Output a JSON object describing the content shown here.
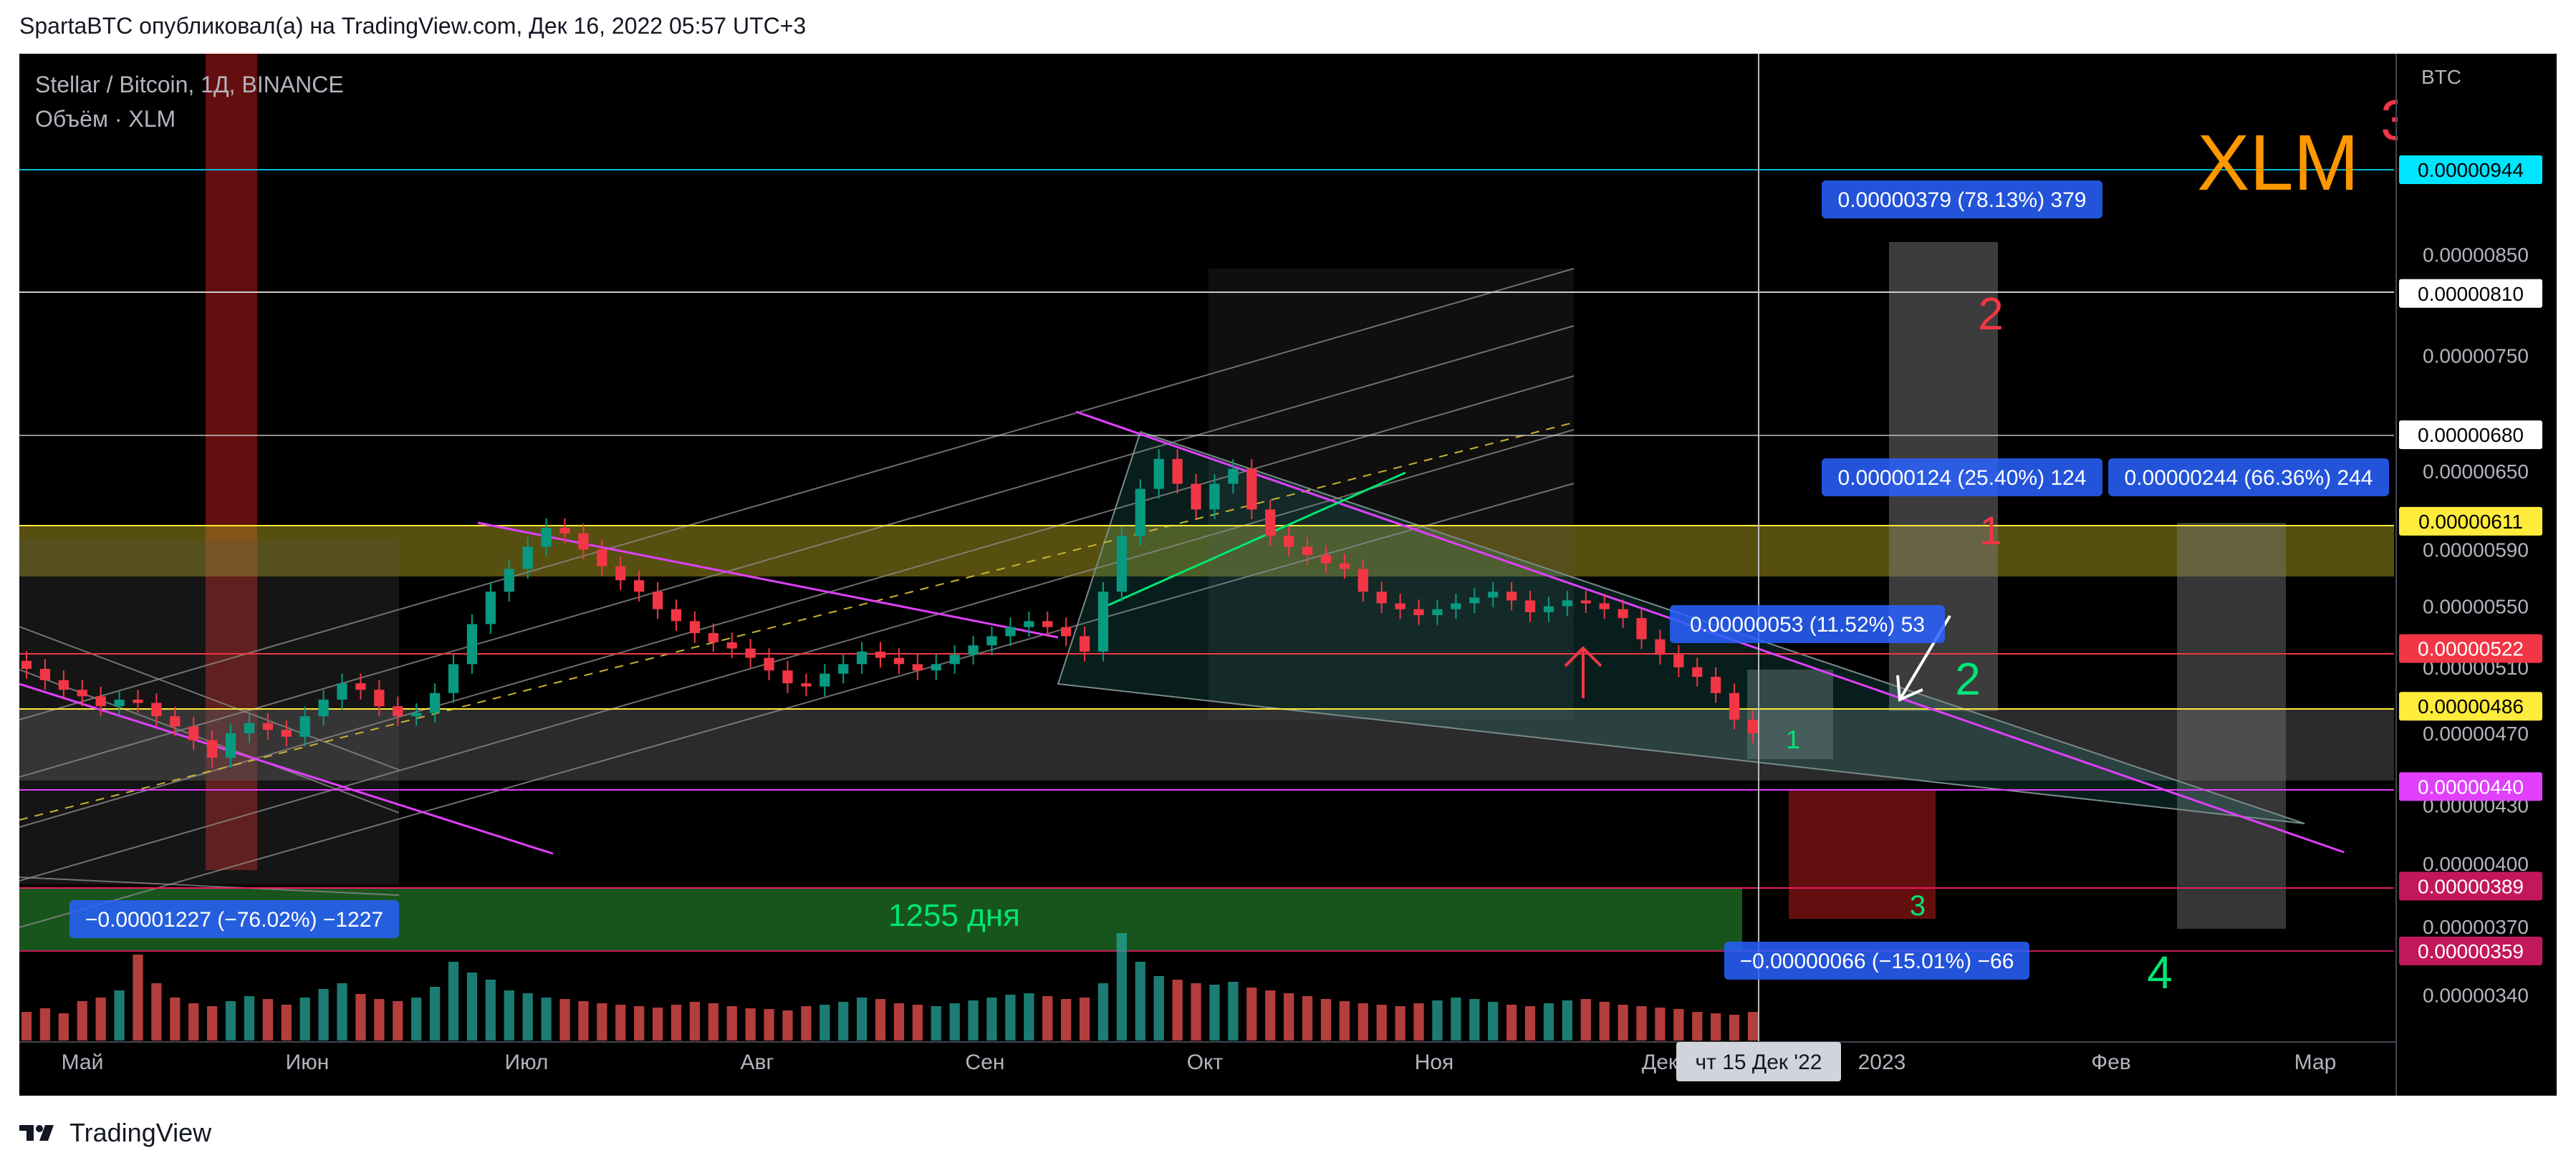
{
  "header": {
    "text": "SpartaBTC опубликовал(а) на TradingView.com, Дек 16, 2022 05:57 UTC+3"
  },
  "footer": {
    "brand": "TradingView"
  },
  "chart_data": {
    "type": "candlestick",
    "symbol_line": "Stellar / Bitcoin, 1Д, BINANCE",
    "volume_line": "Объём · XLM",
    "corner_title": "XLM",
    "corner_number": "3",
    "currency": "BTC",
    "y_axis_labels": [
      "0.00000850",
      "0.00000750",
      "0.00000650",
      "0.00000590",
      "0.00000550",
      "0.00000510",
      "0.00000470",
      "0.00000430",
      "0.00000400",
      "0.00000370",
      "0.00000340"
    ],
    "x_axis_labels": [
      "Май",
      "Июн",
      "Июл",
      "Авг",
      "Сен",
      "Окт",
      "Ноя",
      "Дек",
      "2023",
      "Фев",
      "Мар"
    ],
    "cursor_label": "чт 15 Дек '22",
    "levels": [
      {
        "price": "0.00000944",
        "color": "#00e5ff",
        "text_color": "#000000"
      },
      {
        "price": "0.00000810",
        "color": "#ffffff",
        "text_color": "#000000"
      },
      {
        "price": "0.00000680",
        "color": "#ffffff",
        "text_color": "#000000"
      },
      {
        "price": "0.00000611",
        "color": "#ffeb3b",
        "text_color": "#000000"
      },
      {
        "price": "0.00000522",
        "color": "#f23645",
        "text_color": "#ffffff"
      },
      {
        "price": "0.00000486",
        "color": "#ffeb3b",
        "text_color": "#000000"
      },
      {
        "price": "0.00000440",
        "color": "#e040fb",
        "text_color": "#ffffff"
      },
      {
        "price": "0.00000389",
        "color": "#c2185b",
        "text_color": "#ffffff"
      },
      {
        "price": "0.00000359",
        "color": "#c2185b",
        "text_color": "#ffffff"
      }
    ],
    "measure_labels": [
      "0.00000379 (78.13%) 379",
      "0.00000124 (25.40%) 124",
      "0.00000244 (66.36%) 244",
      "0.00000053 (11.52%) 53",
      "−0.00000066 (−15.01%) −66",
      "−0.00001227 (−76.02%) −1227"
    ],
    "annotations": [
      "2",
      "1",
      "2",
      "1",
      "3",
      "4"
    ],
    "days_label": "1255 дня",
    "colors": {
      "up": "#26a69a",
      "down": "#ef5350",
      "bull_candle": "#089981",
      "bear_candle": "#f23645",
      "measure_box": "#2962ff",
      "xlm_title": "#ff9800",
      "red_number": "#f23645",
      "green_number": "#00e676"
    },
    "series_close": [
      5.09e-06,
      5.02e-06,
      4.96e-06,
      4.92e-06,
      4.86e-06,
      4.9e-06,
      4.88e-06,
      4.8e-06,
      4.74e-06,
      4.66e-06,
      4.56e-06,
      4.7e-06,
      4.76e-06,
      4.72e-06,
      4.68e-06,
      4.8e-06,
      4.9e-06,
      5e-06,
      4.96e-06,
      4.86e-06,
      4.8e-06,
      4.82e-06,
      4.94e-06,
      5.12e-06,
      5.38e-06,
      5.6e-06,
      5.76e-06,
      5.92e-06,
      6.06e-06,
      6.02e-06,
      5.9e-06,
      5.78e-06,
      5.68e-06,
      5.6e-06,
      5.48e-06,
      5.4e-06,
      5.32e-06,
      5.26e-06,
      5.22e-06,
      5.16e-06,
      5.08e-06,
      5e-06,
      4.98e-06,
      5.06e-06,
      5.12e-06,
      5.2e-06,
      5.16e-06,
      5.12e-06,
      5.08e-06,
      5.12e-06,
      5.18e-06,
      5.24e-06,
      5.3e-06,
      5.36e-06,
      5.4e-06,
      5.36e-06,
      5.3e-06,
      5.2e-06,
      5.6e-06,
      6e-06,
      6.36e-06,
      6.6e-06,
      6.4e-06,
      6.2e-06,
      6.4e-06,
      6.52e-06,
      6.2e-06,
      6e-06,
      5.92e-06,
      5.86e-06,
      5.8e-06,
      5.76e-06,
      5.6e-06,
      5.52e-06,
      5.48e-06,
      5.44e-06,
      5.48e-06,
      5.52e-06,
      5.56e-06,
      5.6e-06,
      5.54e-06,
      5.46e-06,
      5.5e-06,
      5.54e-06,
      5.52e-06,
      5.48e-06,
      5.42e-06,
      5.28e-06,
      5.18e-06,
      5.1e-06,
      5.04e-06,
      4.94e-06,
      4.78e-06,
      4.7e-06
    ],
    "volume": [
      40,
      45,
      38,
      55,
      60,
      70,
      120,
      80,
      60,
      52,
      48,
      55,
      62,
      58,
      50,
      60,
      72,
      80,
      65,
      58,
      55,
      60,
      75,
      110,
      95,
      85,
      70,
      66,
      60,
      58,
      55,
      52,
      50,
      48,
      46,
      50,
      54,
      52,
      48,
      45,
      44,
      42,
      48,
      50,
      54,
      60,
      58,
      52,
      50,
      48,
      52,
      56,
      60,
      64,
      66,
      62,
      58,
      60,
      80,
      150,
      110,
      90,
      85,
      80,
      78,
      82,
      74,
      70,
      66,
      62,
      58,
      55,
      52,
      50,
      48,
      52,
      56,
      60,
      58,
      54,
      50,
      48,
      52,
      56,
      58,
      54,
      50,
      48,
      46,
      44,
      40,
      38,
      36,
      40
    ]
  }
}
